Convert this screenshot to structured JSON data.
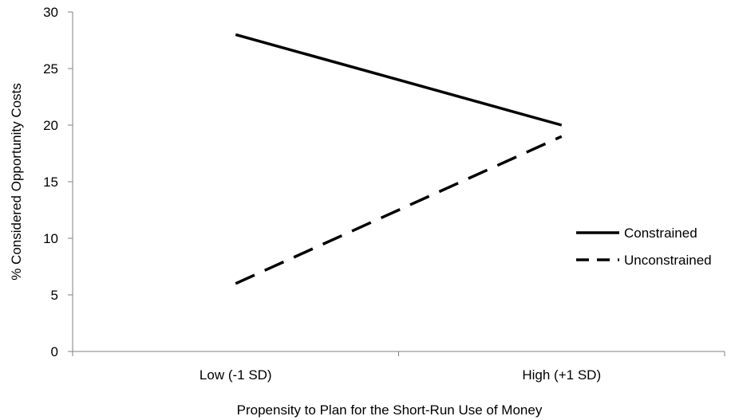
{
  "chart_data": {
    "type": "line",
    "title": "",
    "xlabel": "Propensity to Plan for the Short-Run Use of Money",
    "ylabel": "% Considered Opportunity Costs",
    "categories": [
      "Low (-1 SD)",
      "High (+1 SD)"
    ],
    "ylim": [
      0,
      30
    ],
    "yticks": [
      0,
      5,
      10,
      15,
      20,
      25,
      30
    ],
    "grid": false,
    "legend_position": "right",
    "series": [
      {
        "name": "Constrained",
        "values": [
          28,
          20
        ],
        "line_style": "solid",
        "color": "#000000"
      },
      {
        "name": "Unconstrained",
        "values": [
          6,
          19
        ],
        "line_style": "dashed",
        "color": "#000000"
      }
    ]
  }
}
